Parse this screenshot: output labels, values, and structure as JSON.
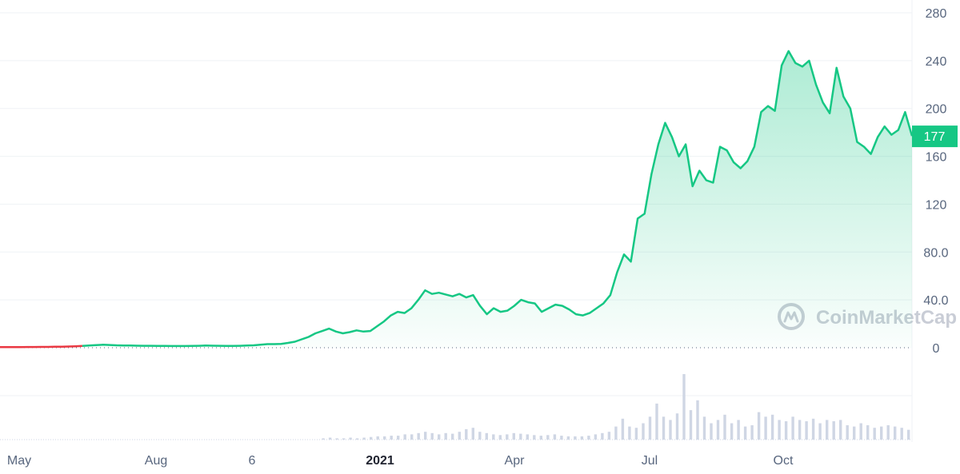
{
  "chart_data": {
    "type": "area",
    "x_ticks": [
      "May",
      "Aug",
      "6",
      "2021",
      "Apr",
      "Jul",
      "Oct"
    ],
    "x_tick_bold": [
      "2021"
    ],
    "y_ticks": [
      "280",
      "240",
      "200",
      "160",
      "120",
      "80.0",
      "40.0",
      "0"
    ],
    "ylim": [
      0,
      280
    ],
    "current_price": "177",
    "grid": true,
    "watermark": "CoinMarketCap",
    "colors": {
      "up": "#16c784",
      "down": "#ea3943",
      "volume": "#cfd6e4",
      "grid": "#eff2f5",
      "badge": "#16c784",
      "axis_text": "#58667e"
    },
    "series": [
      {
        "values": [
          0.5,
          0.5,
          0.5,
          0.5,
          0.6,
          0.6,
          0.7,
          0.7,
          0.8,
          0.9,
          1.0,
          1.2,
          1.5,
          1.8,
          2.2,
          2.5,
          2.3,
          2.0,
          1.9,
          1.8,
          1.7,
          1.6,
          1.6,
          1.5,
          1.5,
          1.4,
          1.4,
          1.4,
          1.5,
          1.6,
          1.8,
          1.7,
          1.6,
          1.5,
          1.5,
          1.6,
          1.8,
          2.0,
          2.5,
          3.0,
          3.0,
          3.2,
          4.0,
          5.0,
          7.0,
          9.0,
          12.0,
          14.0,
          16.0,
          13.5,
          12.0,
          13.0,
          14.5,
          13.5,
          14.0,
          18.0,
          22.0,
          27.0,
          30.0,
          29.0,
          33.0,
          40.0,
          48.0,
          45.0,
          46.0,
          44.5,
          43.0,
          45.0,
          42.0,
          44.0,
          35.0,
          28.0,
          33.0,
          30.0,
          31.0,
          35.0,
          40.0,
          38.0,
          37.0,
          30.0,
          33.0,
          36.0,
          35.0,
          32.0,
          28.0,
          27.0,
          29.0,
          33.0,
          37.0,
          44.0,
          63.0,
          78.0,
          72.0,
          108.0,
          112.0,
          145.0,
          170.0,
          188.0,
          176.0,
          160.0,
          170.0,
          135.0,
          148.0,
          140.0,
          138.0,
          168.0,
          165.0,
          155.0,
          150.0,
          156.0,
          168.0,
          197.0,
          202.0,
          198.0,
          236.0,
          248.0,
          238.0,
          235.0,
          240.0,
          220.0,
          205.0,
          196.0,
          234.0,
          210.0,
          200.0,
          172.0,
          168.0,
          162.0,
          176.0,
          185.0,
          178.0,
          182.0,
          197.0,
          177.0
        ]
      }
    ],
    "volume": [
      0,
      0,
      0,
      0,
      0,
      0,
      0,
      0,
      0,
      0,
      0,
      0,
      0,
      0,
      0,
      0,
      0,
      0,
      0,
      0,
      0,
      0,
      0,
      0,
      0,
      0,
      0,
      0,
      0,
      0,
      0,
      0,
      0,
      0,
      0,
      0,
      0,
      0,
      0,
      0,
      0,
      0,
      0,
      0,
      0,
      0,
      0,
      0.02,
      0.03,
      0.02,
      0.02,
      0.03,
      0.02,
      0.03,
      0.04,
      0.05,
      0.05,
      0.06,
      0.06,
      0.08,
      0.08,
      0.1,
      0.12,
      0.1,
      0.08,
      0.1,
      0.09,
      0.12,
      0.16,
      0.18,
      0.12,
      0.1,
      0.08,
      0.07,
      0.08,
      0.1,
      0.09,
      0.08,
      0.07,
      0.06,
      0.07,
      0.08,
      0.06,
      0.05,
      0.05,
      0.05,
      0.06,
      0.08,
      0.1,
      0.12,
      0.2,
      0.32,
      0.2,
      0.18,
      0.25,
      0.35,
      0.55,
      0.35,
      0.3,
      0.4,
      1.0,
      0.45,
      0.6,
      0.35,
      0.25,
      0.3,
      0.38,
      0.25,
      0.3,
      0.2,
      0.22,
      0.42,
      0.35,
      0.38,
      0.3,
      0.28,
      0.35,
      0.3,
      0.28,
      0.32,
      0.25,
      0.3,
      0.28,
      0.3,
      0.22,
      0.2,
      0.25,
      0.22,
      0.18,
      0.2,
      0.22,
      0.2,
      0.18,
      0.15
    ]
  }
}
